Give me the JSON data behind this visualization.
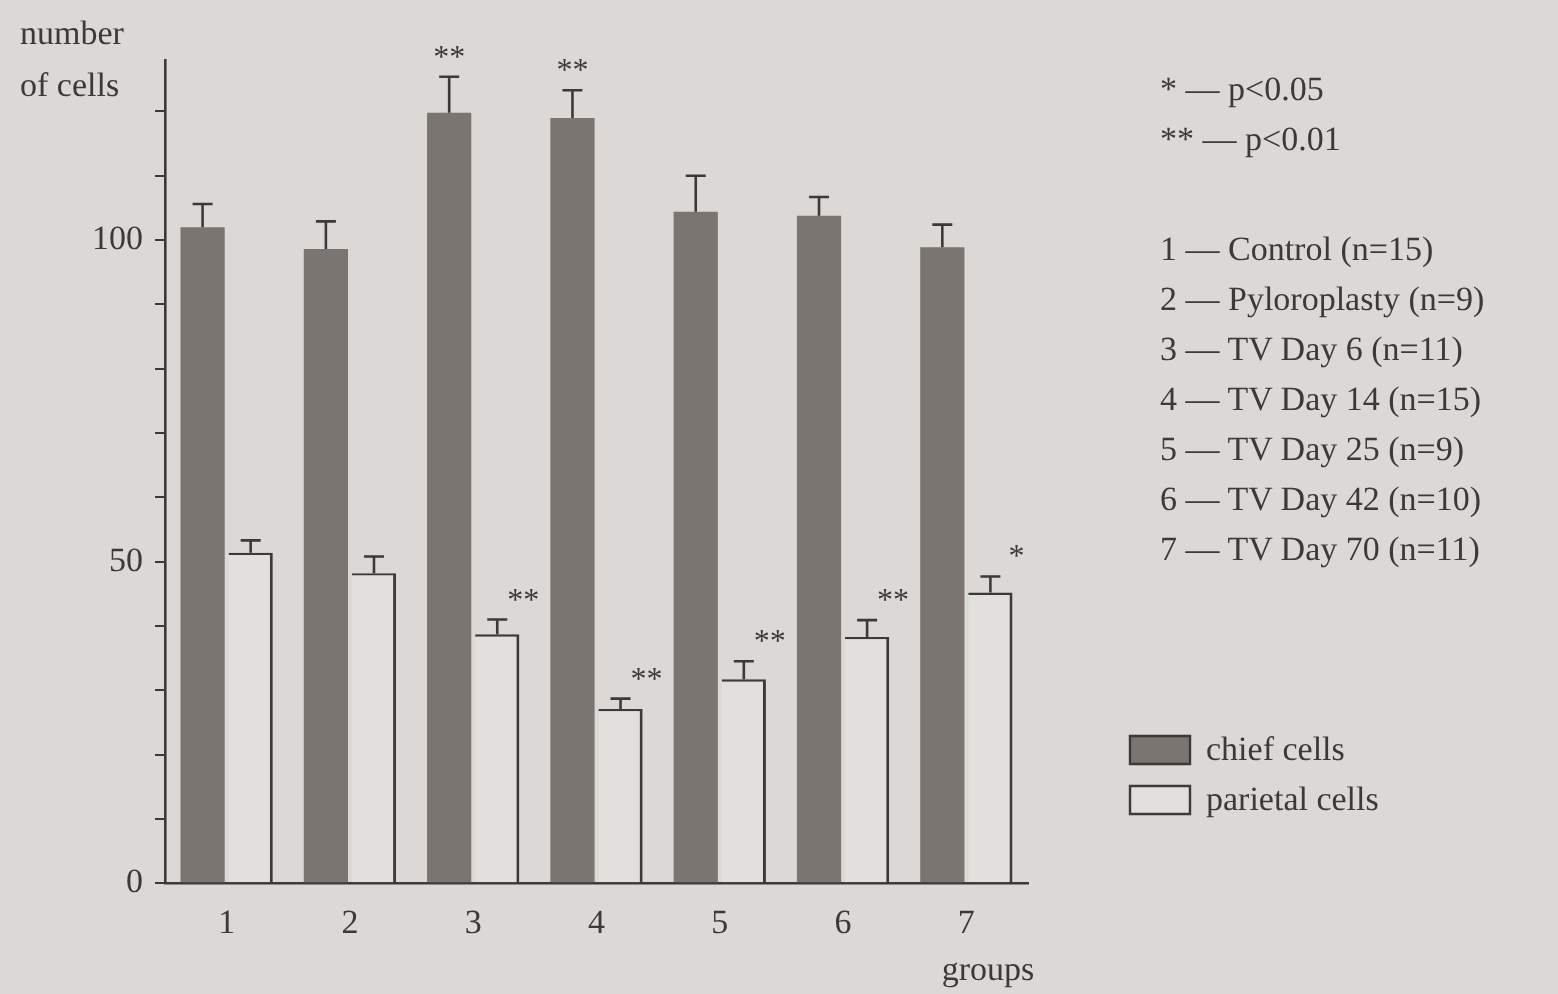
{
  "chart_data": {
    "type": "bar",
    "xlabel": "groups",
    "ylabel": "number of cells",
    "categories": [
      "1",
      "2",
      "3",
      "4",
      "5",
      "6",
      "7"
    ],
    "series": [
      {
        "name": "chief cells",
        "color": "#7a7571",
        "values": [
          102,
          98.6,
          119.8,
          119,
          104.4,
          103.8,
          98.9
        ],
        "errors": [
          3.6,
          4.3,
          5.6,
          4.3,
          5.6,
          2.9,
          3.5
        ]
      },
      {
        "name": "parietal cells",
        "color": "#e2e0dd",
        "values": [
          51.4,
          48.2,
          38.7,
          27.1,
          31.7,
          38.3,
          45.2
        ],
        "errors": [
          1.9,
          2.6,
          2.3,
          1.6,
          2.8,
          2.6,
          2.5
        ]
      }
    ],
    "ylim": [
      0,
      128
    ],
    "yticks": [
      0,
      {
        "value": 10,
        "label": null
      },
      {
        "value": 20,
        "label": null
      },
      {
        "value": 30,
        "label": null
      },
      {
        "value": 40,
        "label": null
      },
      50,
      {
        "value": 60,
        "label": null
      },
      {
        "value": 70,
        "label": null
      },
      {
        "value": 80,
        "label": null
      },
      {
        "value": 90,
        "label": null
      },
      100,
      {
        "value": 110,
        "label": null
      },
      {
        "value": 120,
        "label": null
      }
    ],
    "grid": false,
    "legend": "right",
    "annotations": [
      {
        "text": "**",
        "x": "3",
        "y": 119.8
      },
      {
        "text": "**",
        "x": "4",
        "y": 119
      },
      {
        "text": "**",
        "x": "3",
        "y": 38.7
      },
      {
        "text": "**",
        "x": "4",
        "y": 27.1
      },
      {
        "text": "**",
        "x": "5",
        "y": 31.7
      },
      {
        "text": "**",
        "x": "6",
        "y": 38.3
      },
      {
        "text": "*",
        "x": "7",
        "y": 45.2
      },
      "* — p<0.05",
      "** — p<0.01",
      "1 — Control (n=15)",
      "2 — Pyloroplasty (n=9)",
      "3 — TV Day 6 (n=11)",
      "4 — TV Day 14 (n=15)",
      "5 — TV Day 25 (n=9)",
      "6 — TV Day 42 (n=10)",
      "7 — TV Day 70 (n=11)"
    ]
  }
}
